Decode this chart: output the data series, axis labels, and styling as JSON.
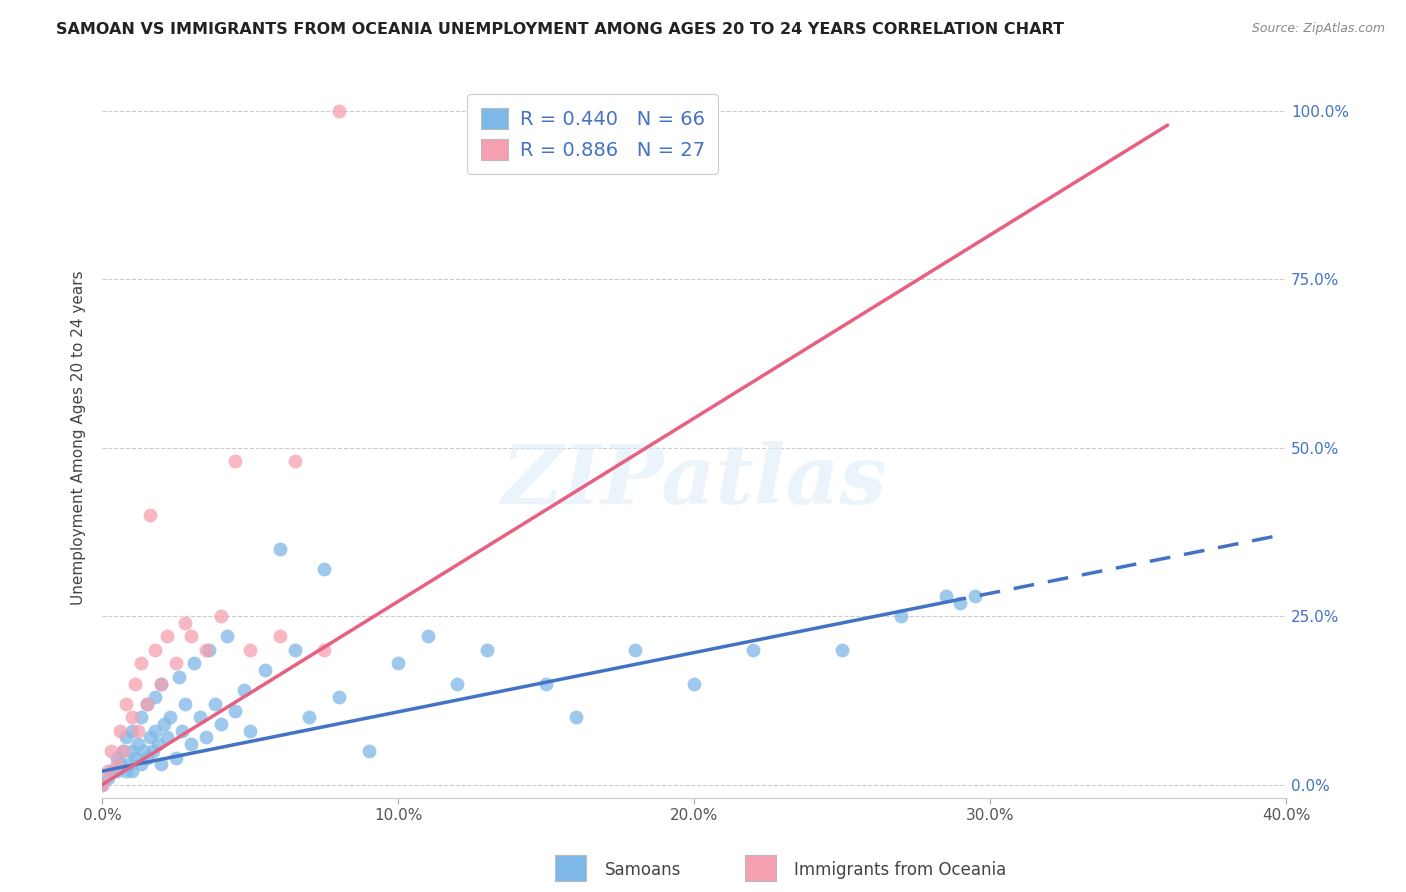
{
  "title": "SAMOAN VS IMMIGRANTS FROM OCEANIA UNEMPLOYMENT AMONG AGES 20 TO 24 YEARS CORRELATION CHART",
  "source": "Source: ZipAtlas.com",
  "xlabel_ticks": [
    "0.0%",
    "10.0%",
    "20.0%",
    "30.0%",
    "40.0%"
  ],
  "xlabel_tick_vals": [
    0.0,
    0.1,
    0.2,
    0.3,
    0.4
  ],
  "ylabel": "Unemployment Among Ages 20 to 24 years",
  "ylabel_ticks": [
    "0.0%",
    "25.0%",
    "50.0%",
    "75.0%",
    "100.0%"
  ],
  "ylabel_tick_vals": [
    0.0,
    0.25,
    0.5,
    0.75,
    1.0
  ],
  "xlim": [
    0.0,
    0.4
  ],
  "ylim": [
    -0.02,
    1.05
  ],
  "legend_label1": "Samoans",
  "legend_label2": "Immigrants from Oceania",
  "R1": 0.44,
  "N1": 66,
  "R2": 0.886,
  "N2": 27,
  "color1": "#7EB8E8",
  "color2": "#F5A0B0",
  "trendline1_color": "#4472C4",
  "trendline2_color": "#E86080",
  "background": "#FFFFFF",
  "watermark": "ZIPatlas",
  "samoan_x": [
    0.0,
    0.002,
    0.003,
    0.005,
    0.005,
    0.006,
    0.007,
    0.008,
    0.008,
    0.009,
    0.01,
    0.01,
    0.01,
    0.011,
    0.012,
    0.013,
    0.013,
    0.014,
    0.015,
    0.015,
    0.016,
    0.017,
    0.018,
    0.018,
    0.019,
    0.02,
    0.02,
    0.021,
    0.022,
    0.023,
    0.025,
    0.026,
    0.027,
    0.028,
    0.03,
    0.031,
    0.033,
    0.035,
    0.036,
    0.038,
    0.04,
    0.042,
    0.045,
    0.048,
    0.05,
    0.055,
    0.06,
    0.065,
    0.07,
    0.075,
    0.08,
    0.09,
    0.1,
    0.11,
    0.12,
    0.13,
    0.15,
    0.16,
    0.18,
    0.2,
    0.22,
    0.25,
    0.27,
    0.285,
    0.29,
    0.295
  ],
  "samoan_y": [
    0.0,
    0.01,
    0.02,
    0.02,
    0.04,
    0.03,
    0.05,
    0.02,
    0.07,
    0.03,
    0.02,
    0.05,
    0.08,
    0.04,
    0.06,
    0.03,
    0.1,
    0.05,
    0.04,
    0.12,
    0.07,
    0.05,
    0.08,
    0.13,
    0.06,
    0.03,
    0.15,
    0.09,
    0.07,
    0.1,
    0.04,
    0.16,
    0.08,
    0.12,
    0.06,
    0.18,
    0.1,
    0.07,
    0.2,
    0.12,
    0.09,
    0.22,
    0.11,
    0.14,
    0.08,
    0.17,
    0.35,
    0.2,
    0.1,
    0.32,
    0.13,
    0.05,
    0.18,
    0.22,
    0.15,
    0.2,
    0.15,
    0.1,
    0.2,
    0.15,
    0.2,
    0.2,
    0.25,
    0.28,
    0.27,
    0.28
  ],
  "oceania_x": [
    0.0,
    0.002,
    0.003,
    0.005,
    0.006,
    0.007,
    0.008,
    0.01,
    0.011,
    0.012,
    0.013,
    0.015,
    0.016,
    0.018,
    0.02,
    0.022,
    0.025,
    0.028,
    0.03,
    0.035,
    0.04,
    0.045,
    0.05,
    0.06,
    0.065,
    0.075,
    0.08
  ],
  "oceania_y": [
    0.0,
    0.02,
    0.05,
    0.03,
    0.08,
    0.05,
    0.12,
    0.1,
    0.15,
    0.08,
    0.18,
    0.12,
    0.4,
    0.2,
    0.15,
    0.22,
    0.18,
    0.24,
    0.22,
    0.2,
    0.25,
    0.48,
    0.2,
    0.22,
    0.48,
    0.2,
    1.0
  ],
  "trendline1_solid_end": 0.285,
  "trendline1_dash_start": 0.285,
  "trendline1_dash_end": 0.4,
  "trendline2_start": 0.0,
  "trendline2_end": 0.36,
  "trendline1_slope": 0.88,
  "trendline1_intercept": 0.02,
  "trendline2_slope": 2.72,
  "trendline2_intercept": 0.0
}
